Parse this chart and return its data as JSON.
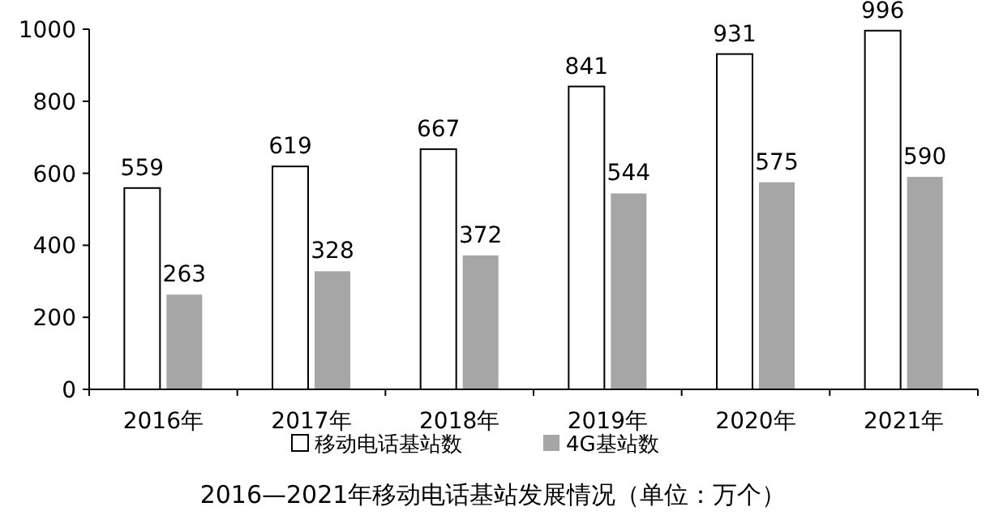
{
  "chart_data": {
    "type": "bar",
    "title": "2016—2021年移动电话基站发展情况（单位：万个）",
    "categories": [
      "2016年",
      "2017年",
      "2018年",
      "2019年",
      "2020年",
      "2021年"
    ],
    "series": [
      {
        "name": "移动电话基站数",
        "color": "#ffffff",
        "values": [
          559,
          619,
          667,
          841,
          931,
          996
        ]
      },
      {
        "name": "4G基站数",
        "color": "#a6a6a6",
        "values": [
          263,
          328,
          372,
          544,
          575,
          590
        ]
      }
    ],
    "ylim": [
      0,
      1000
    ],
    "yticks": [
      0,
      200,
      400,
      600,
      800,
      1000
    ],
    "data_labels": true,
    "legend": "bottom",
    "grid": false
  }
}
